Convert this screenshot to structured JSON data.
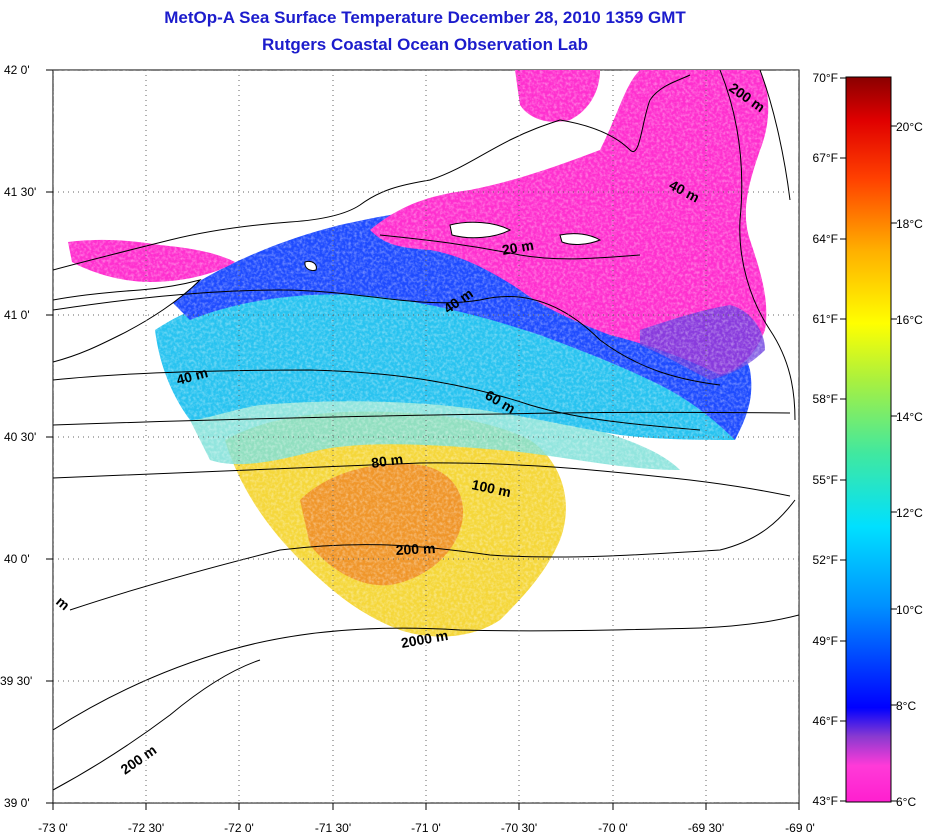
{
  "title": {
    "line1": "MetOp-A Sea Surface Temperature December 28, 2010 1359 GMT",
    "line2": "Rutgers Coastal Ocean Observation Lab"
  },
  "axes": {
    "x_ticks": [
      "-73 0'",
      "-72 30'",
      "-72 0'",
      "-71 30'",
      "-71 0'",
      "-70 30'",
      "-70 0'",
      "-69 30'",
      "-69 0'"
    ],
    "y_ticks": [
      "42 0'",
      "41 30'",
      "41 0'",
      "40 30'",
      "40 0'",
      "39 30'",
      "39 0'"
    ],
    "grid": true
  },
  "colorbar": {
    "fahrenheit": [
      "70°F",
      "67°F",
      "64°F",
      "61°F",
      "58°F",
      "55°F",
      "52°F",
      "49°F",
      "46°F",
      "43°F"
    ],
    "celsius": [
      "20°C",
      "18°C",
      "16°C",
      "14°C",
      "12°C",
      "10°C",
      "8°C",
      "6°C"
    ],
    "range_c": [
      6,
      21.1
    ]
  },
  "contour_labels": [
    "200 m",
    "40 m",
    "20 m",
    "40 m",
    "40 m",
    "60 m",
    "80 m",
    "100 m",
    "200 m",
    "2000 m",
    "200 m",
    "m"
  ],
  "colors": {
    "title": "#1c1ccc",
    "cold": "#ff2fcf",
    "cool": "#1e3cff",
    "mid": "#27c8f0",
    "warm": "#f5e62a",
    "hot": "#f08a1e"
  }
}
